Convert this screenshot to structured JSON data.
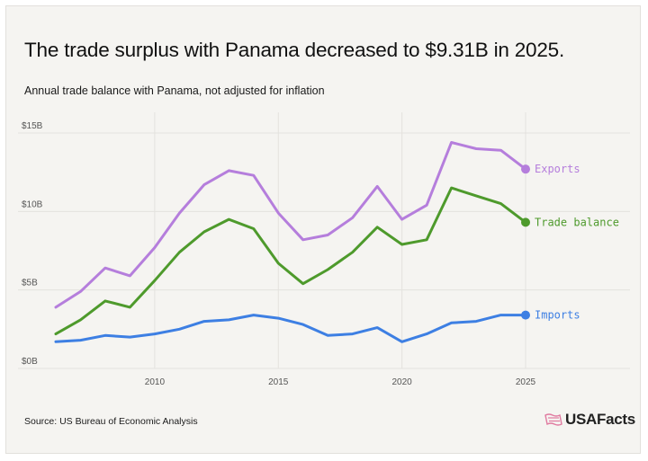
{
  "header": {
    "title": "The trade surplus with Panama decreased to $9.31B in 2025.",
    "subtitle": "Annual trade balance with Panama, not adjusted for inflation"
  },
  "footer": {
    "source": "Source: US Bureau of Economic Analysis",
    "brand": "USAFacts"
  },
  "colors": {
    "exports": "#b57edc",
    "trade_balance": "#4e9a2c",
    "imports": "#3d7fe3",
    "grid": "#e4e2de"
  },
  "chart_data": {
    "type": "line",
    "x": [
      2006,
      2007,
      2008,
      2009,
      2010,
      2011,
      2012,
      2013,
      2014,
      2015,
      2016,
      2017,
      2018,
      2019,
      2020,
      2021,
      2022,
      2023,
      2024,
      2025
    ],
    "series": [
      {
        "name": "Exports",
        "values": [
          3.9,
          4.9,
          6.4,
          5.9,
          7.7,
          9.9,
          11.7,
          12.6,
          12.3,
          9.9,
          8.2,
          8.5,
          9.6,
          11.6,
          9.5,
          10.4,
          14.4,
          14.0,
          13.9,
          12.7
        ]
      },
      {
        "name": "Trade balance",
        "values": [
          2.2,
          3.1,
          4.3,
          3.9,
          5.6,
          7.4,
          8.7,
          9.5,
          8.9,
          6.7,
          5.4,
          6.3,
          7.4,
          9.0,
          7.9,
          8.2,
          11.5,
          11.0,
          10.5,
          9.31
        ]
      },
      {
        "name": "Imports",
        "values": [
          1.7,
          1.8,
          2.1,
          2.0,
          2.2,
          2.5,
          3.0,
          3.1,
          3.4,
          3.2,
          2.8,
          2.1,
          2.2,
          2.6,
          1.7,
          2.2,
          2.9,
          3.0,
          3.4,
          3.4
        ]
      }
    ],
    "ylim": [
      0,
      15
    ],
    "yticks": [
      0,
      5,
      10,
      15
    ],
    "ytick_labels": [
      "$0B",
      "$5B",
      "$10B",
      "$15B"
    ],
    "xticks": [
      2010,
      2015,
      2020,
      2025
    ],
    "xtick_labels": [
      "2010",
      "2015",
      "2020",
      "2025"
    ],
    "xlabel": "",
    "ylabel": "",
    "grid": true,
    "legend": "direct labels at line ends"
  }
}
